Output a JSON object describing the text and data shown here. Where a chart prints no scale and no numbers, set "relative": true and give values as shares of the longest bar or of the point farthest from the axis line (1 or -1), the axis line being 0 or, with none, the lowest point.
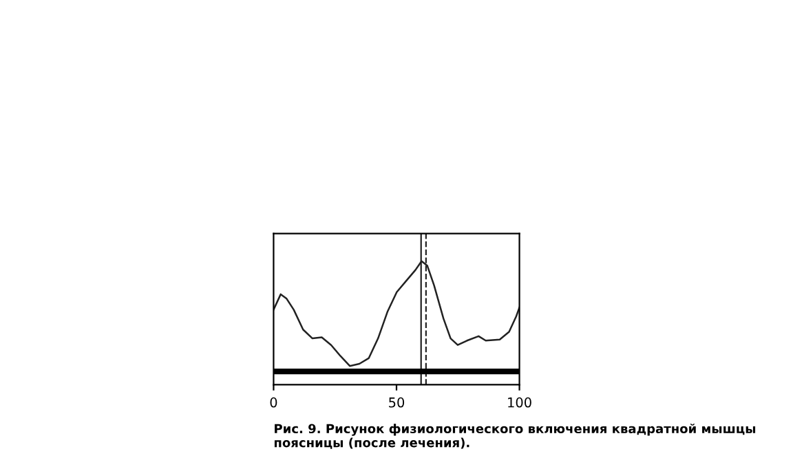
{
  "chart_data": {
    "type": "line",
    "relative": true,
    "color": "#222222",
    "x": [
      0,
      2.9,
      5.3,
      8.2,
      12,
      15.8,
      19.6,
      23.4,
      27.2,
      31,
      34.9,
      38.7,
      42.5,
      46.3,
      50.1,
      53.9,
      57.7,
      60.2,
      62.5,
      65.3,
      69.1,
      72,
      74.9,
      78.7,
      83.4,
      86.3,
      92,
      95.8,
      98.7,
      100
    ],
    "values": [
      0.56,
      0.7,
      0.66,
      0.56,
      0.38,
      0.3,
      0.31,
      0.24,
      0.14,
      0.05,
      0.07,
      0.12,
      0.3,
      0.54,
      0.72,
      0.82,
      0.92,
      1.0,
      0.96,
      0.78,
      0.48,
      0.3,
      0.24,
      0.28,
      0.32,
      0.28,
      0.29,
      0.36,
      0.5,
      0.58
    ],
    "xlim": [
      0,
      100
    ],
    "xticks": [
      0,
      50,
      100
    ],
    "tick_labels": "x",
    "grid": false,
    "legend": false,
    "ref_lines": [
      {
        "axis": "x",
        "value": 60,
        "line_style": "solid",
        "color": "#222222"
      },
      {
        "axis": "x",
        "value": 62,
        "line_style": "dashed",
        "color": "#222222"
      }
    ],
    "annotations": [
      "Рис. 9. Рисунок физиологического включения квадратной мышцы поясницы (после лечения)."
    ]
  }
}
